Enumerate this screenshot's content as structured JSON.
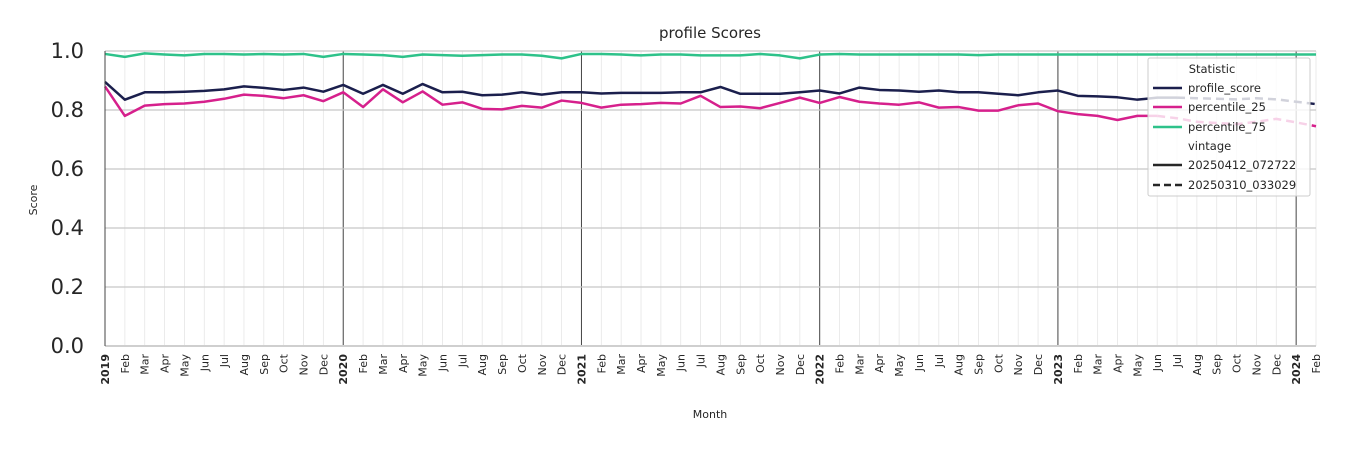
{
  "chart_data": {
    "type": "line",
    "title": "profile Scores",
    "xlabel": "Month",
    "ylabel": "Score",
    "ylim": [
      0.0,
      1.0
    ],
    "yticks": [
      "0.0",
      "0.2",
      "0.4",
      "0.6",
      "0.8",
      "1.0"
    ],
    "grid": true,
    "legend_position": "top-right",
    "x_tick_labels": [
      "2019",
      "Feb",
      "Mar",
      "Apr",
      "May",
      "Jun",
      "Jul",
      "Aug",
      "Sep",
      "Oct",
      "Nov",
      "Dec",
      "2020",
      "Feb",
      "Mar",
      "Apr",
      "May",
      "Jun",
      "Jul",
      "Aug",
      "Sep",
      "Oct",
      "Nov",
      "Dec",
      "2021",
      "Feb",
      "Mar",
      "Apr",
      "May",
      "Jun",
      "Jul",
      "Aug",
      "Sep",
      "Oct",
      "Nov",
      "Dec",
      "2022",
      "Feb",
      "Mar",
      "Apr",
      "May",
      "Jun",
      "Jul",
      "Aug",
      "Sep",
      "Oct",
      "Nov",
      "Dec",
      "2023",
      "Feb",
      "Mar",
      "Apr",
      "May",
      "Jun",
      "Jul",
      "Aug",
      "Sep",
      "Oct",
      "Nov",
      "Dec",
      "2024",
      "Feb"
    ],
    "series": [
      {
        "name": "profile_score",
        "vintage": "20250412_072722",
        "color": "#1b1f4d",
        "values": [
          0.895,
          0.835,
          0.86,
          0.86,
          0.862,
          0.865,
          0.87,
          0.88,
          0.875,
          0.868,
          0.876,
          0.862,
          0.885,
          0.855,
          0.885,
          0.855,
          0.888,
          0.86,
          0.862,
          0.85,
          0.852,
          0.86,
          0.852,
          0.86,
          0.86,
          0.856,
          0.858,
          0.858,
          0.858,
          0.86,
          0.86,
          0.878,
          0.855,
          0.855,
          0.855,
          0.86,
          0.866,
          0.856,
          0.876,
          0.868,
          0.866,
          0.862,
          0.866,
          0.86,
          0.86,
          0.855,
          0.85,
          0.86,
          0.866,
          0.848,
          0.846,
          0.843,
          0.835,
          0.842,
          0.842,
          null,
          null,
          null,
          null,
          null,
          null,
          null
        ]
      },
      {
        "name": "percentile_25",
        "vintage": "20250412_072722",
        "color": "#d6208c",
        "values": [
          0.88,
          0.78,
          0.815,
          0.82,
          0.822,
          0.828,
          0.838,
          0.852,
          0.848,
          0.84,
          0.85,
          0.83,
          0.86,
          0.81,
          0.87,
          0.826,
          0.863,
          0.818,
          0.826,
          0.804,
          0.802,
          0.814,
          0.808,
          0.832,
          0.824,
          0.808,
          0.818,
          0.82,
          0.824,
          0.822,
          0.848,
          0.81,
          0.812,
          0.806,
          0.824,
          0.842,
          0.824,
          0.844,
          0.828,
          0.822,
          0.818,
          0.826,
          0.808,
          0.81,
          0.798,
          0.798,
          0.816,
          0.822,
          0.796,
          0.786,
          0.78,
          0.766,
          0.78,
          0.78,
          null,
          null,
          null,
          null,
          null,
          null,
          null,
          null
        ]
      },
      {
        "name": "percentile_75",
        "vintage": "20250412_072722",
        "color": "#2ec28a",
        "values": [
          0.99,
          0.98,
          0.992,
          0.988,
          0.985,
          0.99,
          0.99,
          0.988,
          0.99,
          0.988,
          0.99,
          0.98,
          0.99,
          0.988,
          0.986,
          0.98,
          0.988,
          0.986,
          0.984,
          0.986,
          0.988,
          0.988,
          0.984,
          0.975,
          0.99,
          0.99,
          0.988,
          0.985,
          0.988,
          0.988,
          0.985,
          0.985,
          0.985,
          0.99,
          0.985,
          0.975,
          0.988,
          0.99,
          0.988,
          0.988,
          0.988,
          0.988,
          0.988,
          0.988,
          0.986,
          0.988,
          0.988,
          0.988,
          0.988,
          0.988,
          0.988,
          0.988,
          0.988,
          0.988,
          0.988,
          0.988,
          0.988,
          0.988,
          0.988,
          0.988,
          0.988,
          0.988
        ]
      },
      {
        "name": "profile_score",
        "vintage": "20250310_033029",
        "color": "#1b1f4d",
        "values": [
          null,
          null,
          null,
          null,
          null,
          null,
          null,
          null,
          null,
          null,
          null,
          null,
          null,
          null,
          null,
          null,
          null,
          null,
          null,
          null,
          null,
          null,
          null,
          null,
          null,
          null,
          null,
          null,
          null,
          null,
          null,
          null,
          null,
          null,
          null,
          null,
          null,
          null,
          null,
          null,
          null,
          null,
          null,
          null,
          null,
          null,
          null,
          null,
          null,
          null,
          null,
          null,
          null,
          null,
          0.842,
          0.84,
          0.838,
          0.836,
          0.84,
          0.836,
          0.828,
          0.82
        ]
      },
      {
        "name": "percentile_25",
        "vintage": "20250310_033029",
        "color": "#d6208c",
        "values": [
          null,
          null,
          null,
          null,
          null,
          null,
          null,
          null,
          null,
          null,
          null,
          null,
          null,
          null,
          null,
          null,
          null,
          null,
          null,
          null,
          null,
          null,
          null,
          null,
          null,
          null,
          null,
          null,
          null,
          null,
          null,
          null,
          null,
          null,
          null,
          null,
          null,
          null,
          null,
          null,
          null,
          null,
          null,
          null,
          null,
          null,
          null,
          null,
          null,
          null,
          null,
          null,
          null,
          0.78,
          0.772,
          0.76,
          0.756,
          0.752,
          0.76,
          0.77,
          0.758,
          0.745
        ]
      }
    ],
    "legend": {
      "statistic_title": "Statistic",
      "vintage_title": "vintage",
      "statistic_items": [
        {
          "label": "profile_score",
          "color": "#1b1f4d"
        },
        {
          "label": "percentile_25",
          "color": "#d6208c"
        },
        {
          "label": "percentile_75",
          "color": "#2ec28a"
        }
      ],
      "vintage_items": [
        {
          "label": "20250412_072722",
          "style": "solid"
        },
        {
          "label": "20250310_033029",
          "style": "dashed"
        }
      ]
    }
  }
}
